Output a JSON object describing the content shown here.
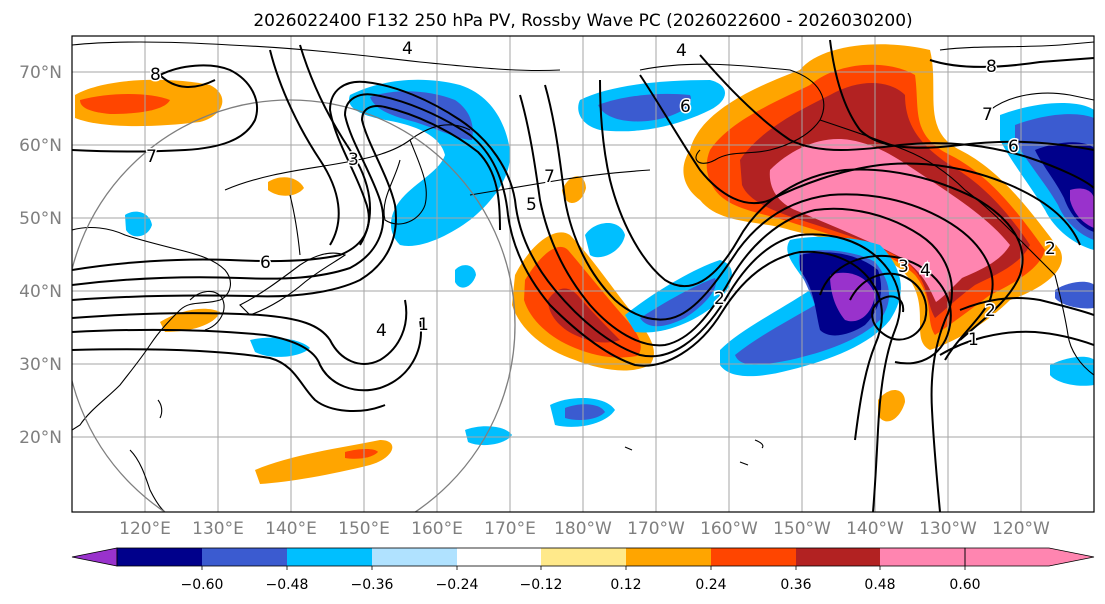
{
  "figure": {
    "title": "2026022400 F132 250 hPa PV, Rossby Wave PC (2026022600 - 2026030200)"
  },
  "map": {
    "lat_labels": [
      "70°N",
      "60°N",
      "50°N",
      "40°N",
      "30°N",
      "20°N"
    ],
    "lon_labels": [
      "120°E",
      "130°E",
      "140°E",
      "150°E",
      "160°E",
      "170°E",
      "180°W",
      "170°W",
      "160°W",
      "150°W",
      "140°W",
      "130°W",
      "120°W"
    ],
    "contour_labels": [
      "8",
      "4",
      "4",
      "7",
      "3",
      "6",
      "4",
      "1",
      "7",
      "5",
      "6",
      "2",
      "1",
      "2",
      "6",
      "4",
      "3",
      "7",
      "8",
      "2"
    ]
  },
  "colorbar": {
    "tick_labels": [
      "−0.60",
      "−0.48",
      "−0.36",
      "−0.24",
      "−0.12",
      "0.12",
      "0.24",
      "0.36",
      "0.48",
      "0.60"
    ],
    "colors": [
      "#9932cc",
      "#00008b",
      "#3b5bd0",
      "#00bfff",
      "#b0e2ff",
      "#ffffff",
      "#ffe98a",
      "#ffa500",
      "#ff4500",
      "#b22222",
      "#ff85b0"
    ]
  }
}
